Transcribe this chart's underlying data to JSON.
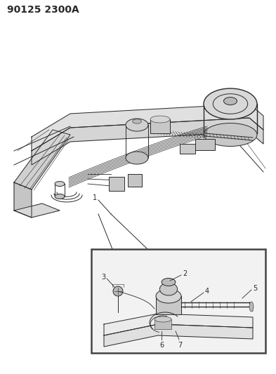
{
  "title": "90125 2300A",
  "bg_color": "#ffffff",
  "line_color": "#2a2a2a",
  "title_fontsize": 10,
  "fig_width": 3.93,
  "fig_height": 5.33,
  "dpi": 100,
  "labels": [
    "1",
    "2",
    "3",
    "4",
    "5",
    "6",
    "7"
  ],
  "gray1": "#c8c8c8",
  "gray2": "#b0b0b0",
  "gray3": "#d8d8d8",
  "gray4": "#e8e8e8",
  "gray5": "#f0f0f0",
  "inset_bg": "#f2f2f2",
  "inset_border": "#444444"
}
